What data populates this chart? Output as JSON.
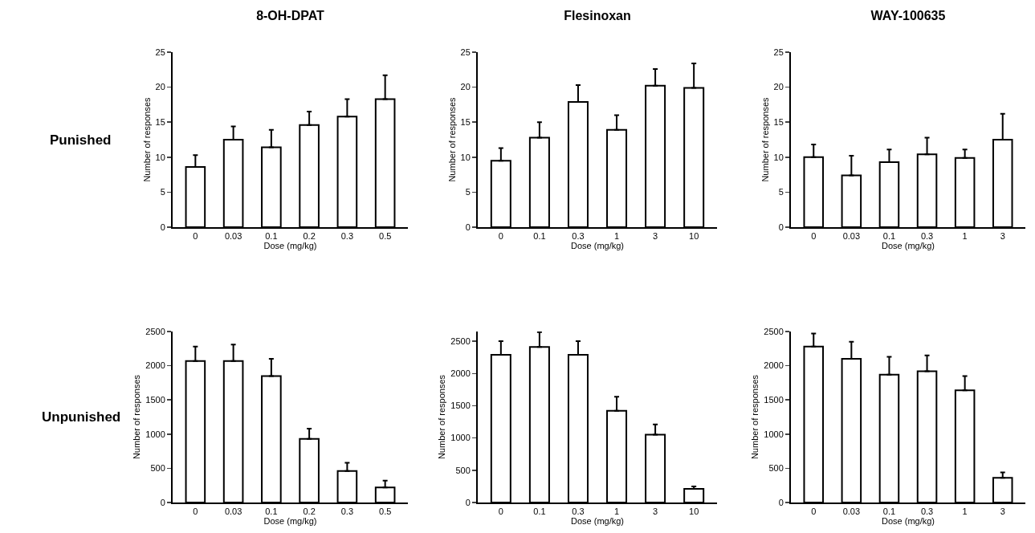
{
  "chart_data": [
    {
      "type": "bar",
      "title": "8-OH-DPAT",
      "annotations": [
        "Punished"
      ],
      "xlabel": "Dose (mg/kg)",
      "ylabel": "Number of responses",
      "categories": [
        "0",
        "0.03",
        "0.1",
        "0.2",
        "0.3",
        "0.5"
      ],
      "values": [
        8.6,
        12.5,
        11.4,
        14.6,
        15.8,
        18.3
      ],
      "errors": [
        [
          8.6,
          10.3
        ],
        [
          12.5,
          14.4
        ],
        [
          11.4,
          13.9
        ],
        [
          14.6,
          16.5
        ],
        [
          15.8,
          18.3
        ],
        [
          18.3,
          21.7
        ]
      ],
      "color": "#ffffff",
      "ylim": [
        0,
        25
      ],
      "yticks": [
        0,
        5,
        10,
        15,
        20,
        25
      ],
      "grid": false,
      "legend": false
    },
    {
      "type": "bar",
      "title": "Flesinoxan",
      "xlabel": "Dose (mg/kg)",
      "ylabel": "Number of responses",
      "categories": [
        "0",
        "0.1",
        "0.3",
        "1",
        "3",
        "10"
      ],
      "values": [
        9.5,
        12.8,
        17.9,
        13.9,
        20.2,
        19.9
      ],
      "errors": [
        [
          9.5,
          11.3
        ],
        [
          12.8,
          15.0
        ],
        [
          17.9,
          20.3
        ],
        [
          13.9,
          16.0
        ],
        [
          20.2,
          22.6
        ],
        [
          19.9,
          23.4
        ]
      ],
      "color": "#ffffff",
      "ylim": [
        0,
        25
      ],
      "yticks": [
        0,
        5,
        10,
        15,
        20,
        25
      ],
      "grid": false,
      "legend": false
    },
    {
      "type": "bar",
      "title": "WAY-100635",
      "xlabel": "Dose (mg/kg)",
      "ylabel": "Number of responses",
      "categories": [
        "0",
        "0.03",
        "0.1",
        "0.3",
        "1",
        "3"
      ],
      "values": [
        10.0,
        7.4,
        9.3,
        10.4,
        9.9,
        12.5
      ],
      "errors": [
        [
          10.0,
          11.8
        ],
        [
          7.4,
          10.2
        ],
        [
          9.3,
          11.1
        ],
        [
          10.4,
          12.8
        ],
        [
          9.9,
          11.1
        ],
        [
          12.5,
          16.2
        ]
      ],
      "color": "#ffffff",
      "ylim": [
        0,
        25
      ],
      "yticks": [
        0,
        5,
        10,
        15,
        20,
        25
      ],
      "grid": false,
      "legend": false
    },
    {
      "type": "bar",
      "annotations": [
        "Unpunished"
      ],
      "xlabel": "Dose (mg/kg)",
      "ylabel": "Number of responses",
      "categories": [
        "0",
        "0.03",
        "0.1",
        "0.2",
        "0.3",
        "0.5"
      ],
      "values": [
        2070,
        2070,
        1850,
        930,
        460,
        220
      ],
      "errors": [
        [
          2070,
          2280
        ],
        [
          2070,
          2310
        ],
        [
          1850,
          2100
        ],
        [
          930,
          1080
        ],
        [
          460,
          580
        ],
        [
          220,
          320
        ]
      ],
      "color": "#ffffff",
      "ylim": [
        0,
        2500
      ],
      "yticks": [
        0,
        500,
        1000,
        1500,
        2000,
        2500
      ],
      "grid": false,
      "legend": false
    },
    {
      "type": "bar",
      "xlabel": "Dose (mg/kg)",
      "ylabel": "Number of responses",
      "categories": [
        "0",
        "0.1",
        "0.3",
        "1",
        "3",
        "10"
      ],
      "values": [
        2290,
        2410,
        2290,
        1420,
        1050,
        210
      ],
      "errors": [
        [
          2290,
          2500
        ],
        [
          2410,
          2640
        ],
        [
          2290,
          2500
        ],
        [
          1420,
          1640
        ],
        [
          1050,
          1210
        ],
        [
          210,
          250
        ]
      ],
      "color": "#ffffff",
      "ylim": [
        0,
        2650
      ],
      "yticks": [
        0,
        500,
        1000,
        1500,
        2000,
        2500
      ],
      "grid": false,
      "legend": false
    },
    {
      "type": "bar",
      "xlabel": "Dose (mg/kg)",
      "ylabel": "Number of responses",
      "categories": [
        "0",
        "0.03",
        "0.1",
        "0.3",
        "1",
        "3"
      ],
      "values": [
        2280,
        2100,
        1870,
        1920,
        1640,
        360
      ],
      "errors": [
        [
          2280,
          2470
        ],
        [
          2100,
          2350
        ],
        [
          1870,
          2130
        ],
        [
          1920,
          2150
        ],
        [
          1640,
          1850
        ],
        [
          360,
          440
        ]
      ],
      "color": "#ffffff",
      "ylim": [
        0,
        2500
      ],
      "yticks": [
        0,
        500,
        1000,
        1500,
        2000,
        2500
      ],
      "grid": false,
      "legend": false
    }
  ]
}
